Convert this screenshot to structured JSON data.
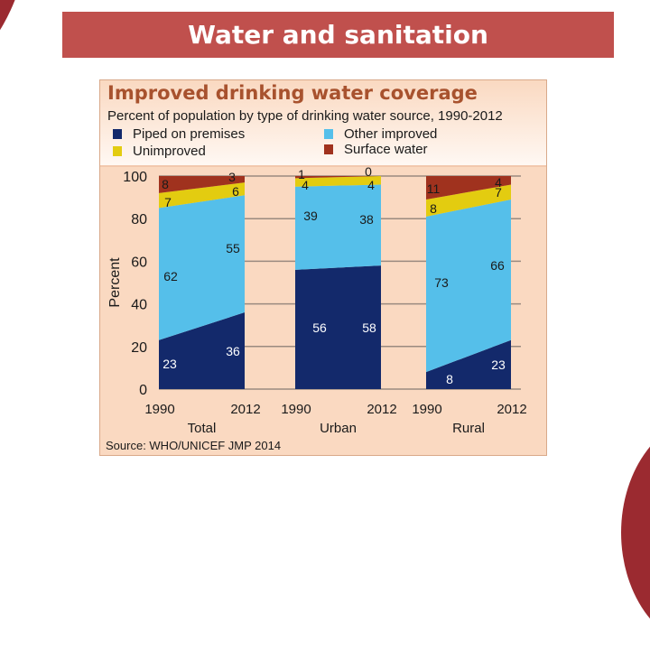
{
  "slide": {
    "title": "Water and sanitation"
  },
  "colors": {
    "piped": "#13296b",
    "other_improved": "#55bfea",
    "unimproved": "#e3cc10",
    "surface_water": "#a0321e",
    "title_bar": "#c0504d",
    "panel_bg": "#fad9c1",
    "chart_title": "#a8522e"
  },
  "chart_data": {
    "type": "area",
    "subtype": "stacked-percent-panels",
    "title": "Improved drinking water coverage",
    "subtitle": "Percent of population by type of drinking water source, 1990-2012",
    "ylabel": "Percent",
    "ylim": [
      0,
      100
    ],
    "yticks": [
      0,
      20,
      40,
      60,
      80,
      100
    ],
    "grid": true,
    "legend": [
      {
        "name": "Piped on premises",
        "color_key": "piped"
      },
      {
        "name": "Other improved",
        "color_key": "other_improved"
      },
      {
        "name": "Unimproved",
        "color_key": "unimproved"
      },
      {
        "name": "Surface water",
        "color_key": "surface_water"
      }
    ],
    "legend_position": "top",
    "x": [
      "1990",
      "2012"
    ],
    "groups": [
      {
        "name": "Total",
        "series": [
          {
            "name": "Piped on premises",
            "values": [
              23,
              36
            ]
          },
          {
            "name": "Other improved",
            "values": [
              62,
              55
            ]
          },
          {
            "name": "Unimproved",
            "values": [
              7,
              6
            ]
          },
          {
            "name": "Surface water",
            "values": [
              8,
              3
            ]
          }
        ]
      },
      {
        "name": "Urban",
        "series": [
          {
            "name": "Piped on premises",
            "values": [
              56,
              58
            ]
          },
          {
            "name": "Other improved",
            "values": [
              39,
              38
            ]
          },
          {
            "name": "Unimproved",
            "values": [
              4,
              4
            ]
          },
          {
            "name": "Surface water",
            "values": [
              1,
              0
            ]
          }
        ]
      },
      {
        "name": "Rural",
        "series": [
          {
            "name": "Piped on premises",
            "values": [
              8,
              23
            ]
          },
          {
            "name": "Other improved",
            "values": [
              73,
              66
            ]
          },
          {
            "name": "Unimproved",
            "values": [
              8,
              7
            ]
          },
          {
            "name": "Surface water",
            "values": [
              11,
              4
            ]
          }
        ]
      }
    ],
    "source": "Source:  WHO/UNICEF JMP 2014"
  }
}
